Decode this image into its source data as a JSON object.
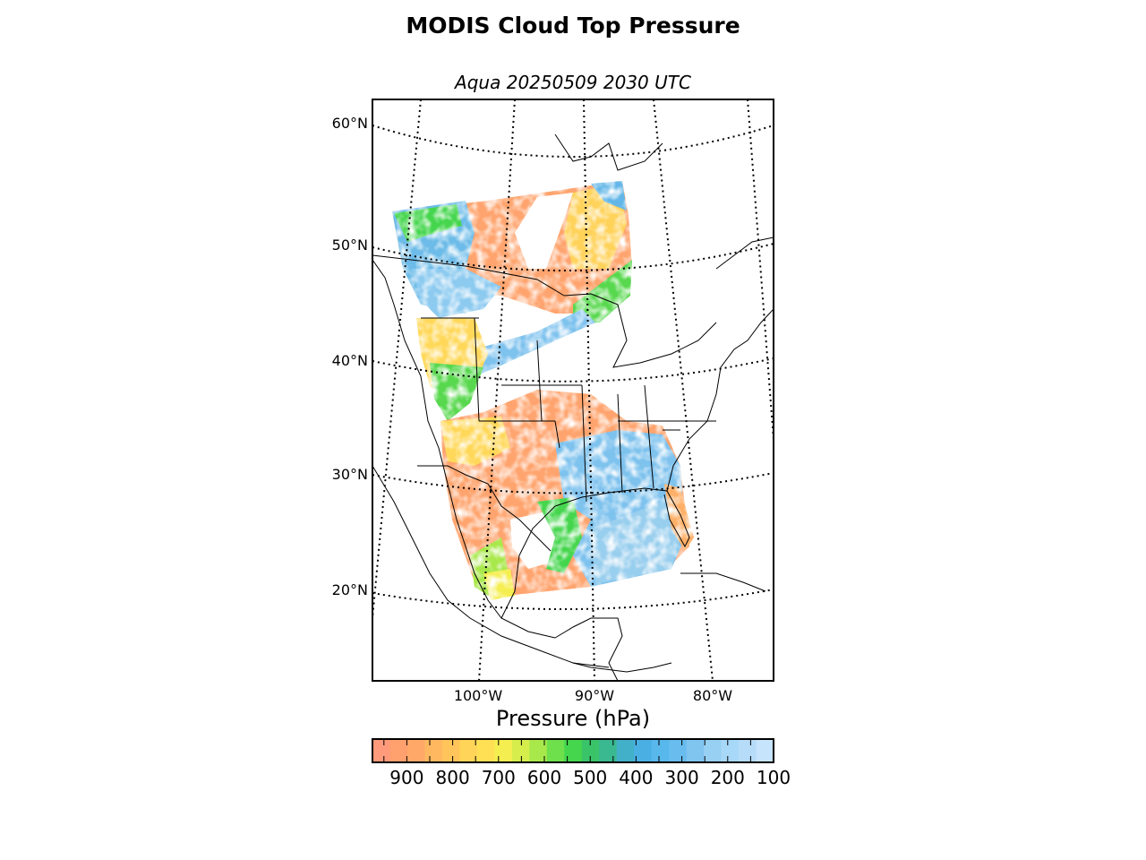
{
  "title": "MODIS Cloud Top Pressure",
  "subtitle": "Aqua 20250509 2030 UTC",
  "map": {
    "lat_labels": [
      "60°N",
      "50°N",
      "40°N",
      "30°N",
      "20°N"
    ],
    "lon_labels": [
      "100°W",
      "90°W",
      "80°W"
    ]
  },
  "colorbar": {
    "label": "Pressure (hPa)",
    "ticks": [
      "900",
      "800",
      "700",
      "600",
      "500",
      "400",
      "300",
      "200",
      "100"
    ],
    "range_hPa": [
      975,
      100
    ],
    "colors": [
      "#ff9a7a",
      "#ffa06f",
      "#ffa868",
      "#ffb860",
      "#ffc45a",
      "#ffd458",
      "#ffe055",
      "#f5ee50",
      "#d6ee4c",
      "#a8e84a",
      "#6de04c",
      "#45d64e",
      "#3ac46a",
      "#3ab890",
      "#42b0c8",
      "#4ab0e4",
      "#58b8ec",
      "#68bcee",
      "#80c4f0",
      "#98d0f4",
      "#a8d8f8",
      "#b6dcfa",
      "#c6e4fc"
    ],
    "tick_count_minor": 17
  },
  "legend_colors": {
    "orange": "#ffa06e",
    "yellow": "#ffd85a",
    "green": "#48d84e",
    "blue": "#62b6e8",
    "light_blue": "#9cd2f4"
  }
}
